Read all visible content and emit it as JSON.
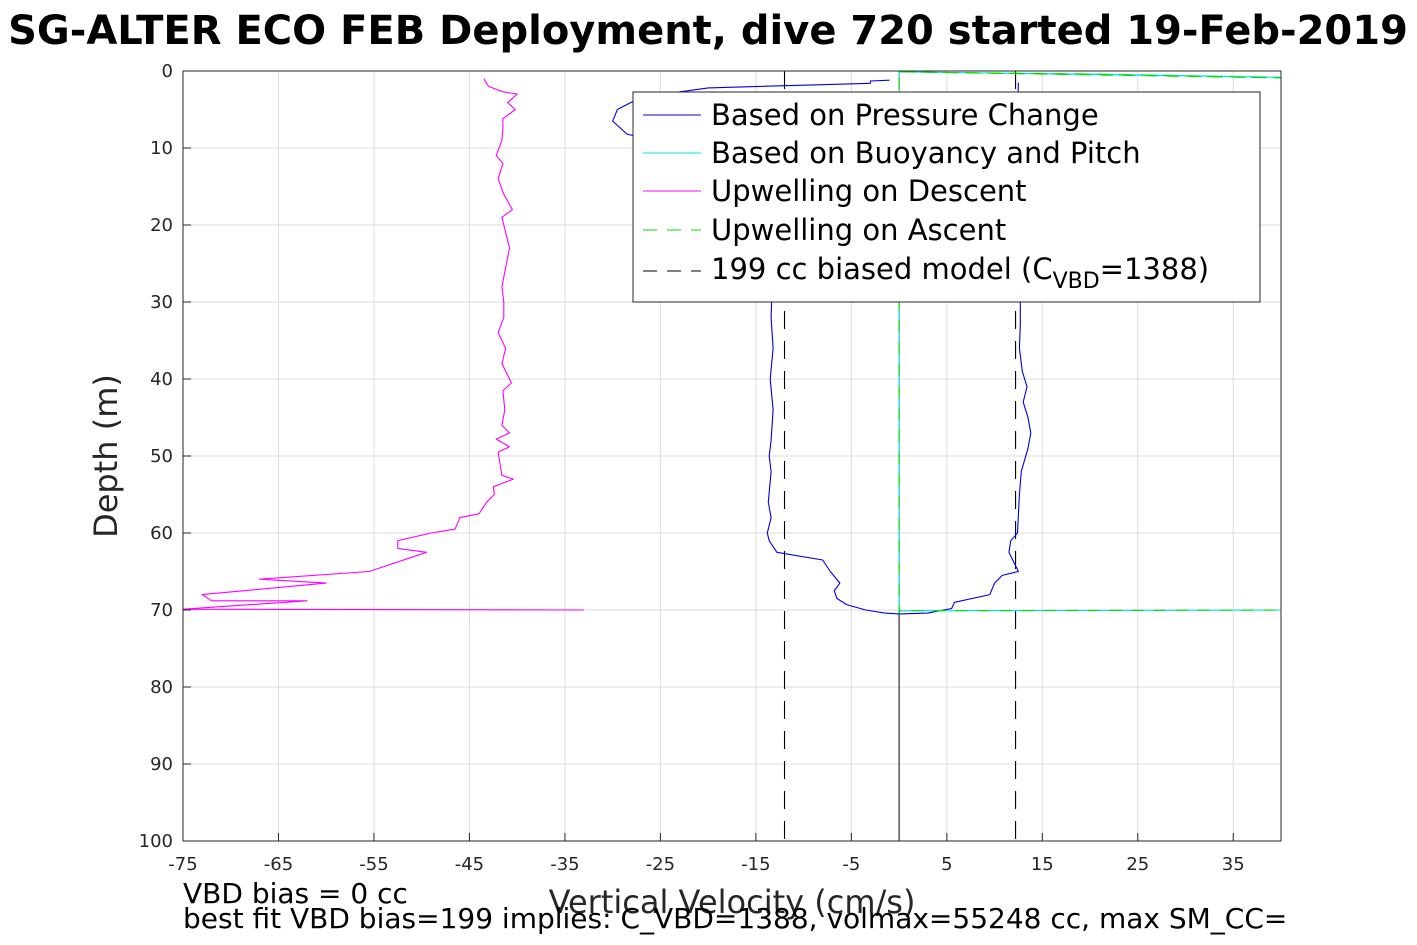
{
  "title": "SG-ALTER ECO FEB Deployment, dive 720 started 19-Feb-2019",
  "xlabel": "Vertical Velocity (cm/s)",
  "ylabel": "Depth (m)",
  "footnote_1": "VBD bias = 0 cc",
  "footnote_2": "best fit VBD bias=199 implies: C_VBD=1388, volmax=55248 cc, max SM_CC=",
  "legend": {
    "pressure": "Based on Pressure Change",
    "buoyancy": "Based on Buoyancy and Pitch",
    "up_descent": "Upwelling on Descent",
    "up_ascent": "Upwelling on Ascent",
    "model_prefix": "199 cc biased model (C",
    "model_sub": "VBD",
    "model_suffix": "=1388)"
  },
  "colors": {
    "pressure": "#0000e6",
    "buoyancy": "#00e6e6",
    "up_descent": "#ff00ff",
    "up_ascent": "#00dd00",
    "model": "#000000",
    "grid": "#dcdcdc"
  },
  "chart_data": {
    "type": "line",
    "xlim": [
      -75,
      40
    ],
    "ylim": [
      0,
      100
    ],
    "y_reversed": true,
    "grid": true,
    "legend_position": "top-right",
    "x_ticks": [
      -75,
      -65,
      -55,
      -45,
      -35,
      -25,
      -15,
      -5,
      5,
      15,
      25,
      35
    ],
    "y_ticks": [
      0,
      10,
      20,
      30,
      40,
      50,
      60,
      70,
      80,
      90,
      100
    ],
    "series": [
      {
        "name": "Based on Pressure Change",
        "style": "solid",
        "points": [
          [
            -1,
            1.2
          ],
          [
            -3,
            1.3
          ],
          [
            -3,
            1.6
          ],
          [
            -9,
            1.8
          ],
          [
            -20,
            2.2
          ],
          [
            -27,
            3.4
          ],
          [
            -29.5,
            5
          ],
          [
            -30,
            6.5
          ],
          [
            -28.5,
            8.2
          ],
          [
            -24,
            9.5
          ],
          [
            -19,
            11
          ],
          [
            -16,
            13
          ],
          [
            -14.5,
            16
          ],
          [
            -14,
            20
          ],
          [
            -13.8,
            25
          ],
          [
            -13.3,
            28
          ],
          [
            -13.4,
            32
          ],
          [
            -13.2,
            36
          ],
          [
            -13.5,
            40
          ],
          [
            -13.2,
            44
          ],
          [
            -13.4,
            48
          ],
          [
            -13.6,
            50
          ],
          [
            -13.4,
            52
          ],
          [
            -13.7,
            56
          ],
          [
            -13.4,
            58
          ],
          [
            -13.8,
            60
          ],
          [
            -13.6,
            61
          ],
          [
            -12.8,
            62.5
          ],
          [
            -8,
            63.5
          ],
          [
            -7.2,
            65
          ],
          [
            -6.2,
            66.5
          ],
          [
            -6.8,
            67.5
          ],
          [
            -6.5,
            68.5
          ],
          [
            -5.5,
            69.3
          ],
          [
            -3.5,
            70
          ],
          [
            -1.5,
            70.4
          ],
          [
            0,
            70.5
          ],
          [
            3,
            70.4
          ],
          [
            5.5,
            69.8
          ],
          [
            5.8,
            69
          ],
          [
            9.5,
            68
          ],
          [
            10,
            66.5
          ],
          [
            10.8,
            65.5
          ],
          [
            12.5,
            65
          ],
          [
            11.5,
            62.5
          ],
          [
            11.7,
            61
          ],
          [
            12.4,
            60
          ],
          [
            12.6,
            55
          ],
          [
            12.8,
            52
          ],
          [
            13.5,
            49
          ],
          [
            13.8,
            47
          ],
          [
            13.5,
            45
          ],
          [
            13,
            43
          ],
          [
            13.4,
            41
          ],
          [
            12.9,
            39
          ],
          [
            12.6,
            36
          ],
          [
            12.7,
            33
          ],
          [
            12.7,
            30
          ],
          [
            12.6,
            25
          ],
          [
            12.6,
            20
          ],
          [
            12.5,
            15
          ],
          [
            12.3,
            10
          ],
          [
            12.4,
            5
          ],
          [
            12.5,
            1.5
          ]
        ]
      },
      {
        "name": "Based on Buoyancy and Pitch",
        "style": "solid",
        "points": [
          [
            0,
            0.1
          ],
          [
            5,
            0.2
          ],
          [
            20,
            0.4
          ],
          [
            40,
            0.8
          ],
          [
            0,
            0.1
          ],
          [
            0,
            70.4
          ],
          [
            0,
            70.1
          ],
          [
            20,
            70.05
          ],
          [
            40,
            70.0
          ]
        ]
      },
      {
        "name": "Upwelling on Descent",
        "style": "solid",
        "points": [
          [
            -43.5,
            1.0
          ],
          [
            -43,
            2
          ],
          [
            -41.5,
            2.7
          ],
          [
            -40,
            3
          ],
          [
            -41,
            4.1
          ],
          [
            -40.2,
            5
          ],
          [
            -41.5,
            6.2
          ],
          [
            -41.5,
            7.5
          ],
          [
            -41.6,
            9
          ],
          [
            -42.2,
            11
          ],
          [
            -41.5,
            12
          ],
          [
            -42,
            14
          ],
          [
            -41.4,
            16
          ],
          [
            -40.5,
            18
          ],
          [
            -41.6,
            19
          ],
          [
            -41.2,
            21
          ],
          [
            -40.8,
            23
          ],
          [
            -41.2,
            25.5
          ],
          [
            -41.6,
            28
          ],
          [
            -41.4,
            30
          ],
          [
            -41.4,
            32
          ],
          [
            -42,
            34
          ],
          [
            -41.2,
            36
          ],
          [
            -41.6,
            38
          ],
          [
            -41.2,
            39
          ],
          [
            -40.6,
            40.5
          ],
          [
            -41.5,
            41.5
          ],
          [
            -41.3,
            44
          ],
          [
            -41.6,
            46
          ],
          [
            -40.8,
            47
          ],
          [
            -42.2,
            47.8
          ],
          [
            -40.8,
            48.8
          ],
          [
            -42,
            49.5
          ],
          [
            -41.8,
            51
          ],
          [
            -41.6,
            52.5
          ],
          [
            -40.4,
            53
          ],
          [
            -42.5,
            54
          ],
          [
            -42.4,
            55
          ],
          [
            -43.2,
            56
          ],
          [
            -44,
            57.5
          ],
          [
            -46,
            58
          ],
          [
            -46.5,
            59.5
          ],
          [
            -49,
            60
          ],
          [
            -52.5,
            61
          ],
          [
            -52.5,
            62
          ],
          [
            -49.5,
            62.5
          ],
          [
            -55.5,
            65
          ],
          [
            -67,
            66
          ],
          [
            -60,
            66.5
          ],
          [
            -73,
            68
          ],
          [
            -72,
            68.8
          ],
          [
            -62,
            68.8
          ],
          [
            -75,
            69.9
          ],
          [
            -33,
            70.0
          ]
        ]
      },
      {
        "name": "Upwelling on Ascent",
        "style": "dashed",
        "points": [
          [
            0,
            0.1
          ],
          [
            5,
            0.2
          ],
          [
            20,
            0.4
          ],
          [
            40,
            0.9
          ],
          [
            0,
            0.1
          ],
          [
            0,
            70.4
          ],
          [
            0,
            70.1
          ],
          [
            20,
            70.05
          ],
          [
            40,
            70.0
          ]
        ]
      },
      {
        "name": "199 cc biased model (C_VBD=1388)",
        "style": "dashed",
        "lines": [
          [
            [
              -12,
              0
            ],
            [
              -12,
              100
            ]
          ],
          [
            [
              12.2,
              0
            ],
            [
              12.2,
              100
            ]
          ]
        ]
      }
    ]
  }
}
